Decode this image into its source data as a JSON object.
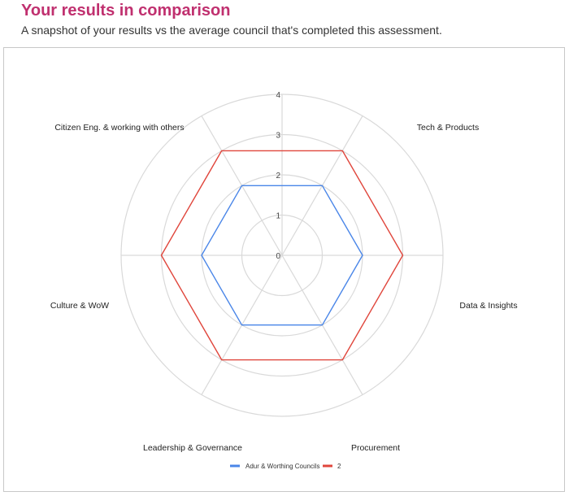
{
  "header": {
    "title": "Your results in comparison",
    "subtitle": "A snapshot of your results vs the average council that's completed this assessment."
  },
  "chart_data": {
    "type": "radar",
    "axes": [
      "Tech & Products",
      "Data & Insights",
      "Procurement",
      "Leadership & Governance",
      "Culture & WoW",
      "Citizen Eng. & working with others"
    ],
    "ticks": [
      "0",
      "1",
      "2",
      "3",
      "4"
    ],
    "rmax": 4,
    "series": [
      {
        "name": "Adur & Worthing Councils",
        "color": "#4a86e8",
        "values": [
          2,
          2,
          2,
          2,
          2,
          2
        ]
      },
      {
        "name": "2",
        "color": "#e0463c",
        "values": [
          3,
          3,
          3,
          3,
          3,
          3
        ]
      }
    ],
    "grid": true,
    "legend_position": "bottom"
  }
}
